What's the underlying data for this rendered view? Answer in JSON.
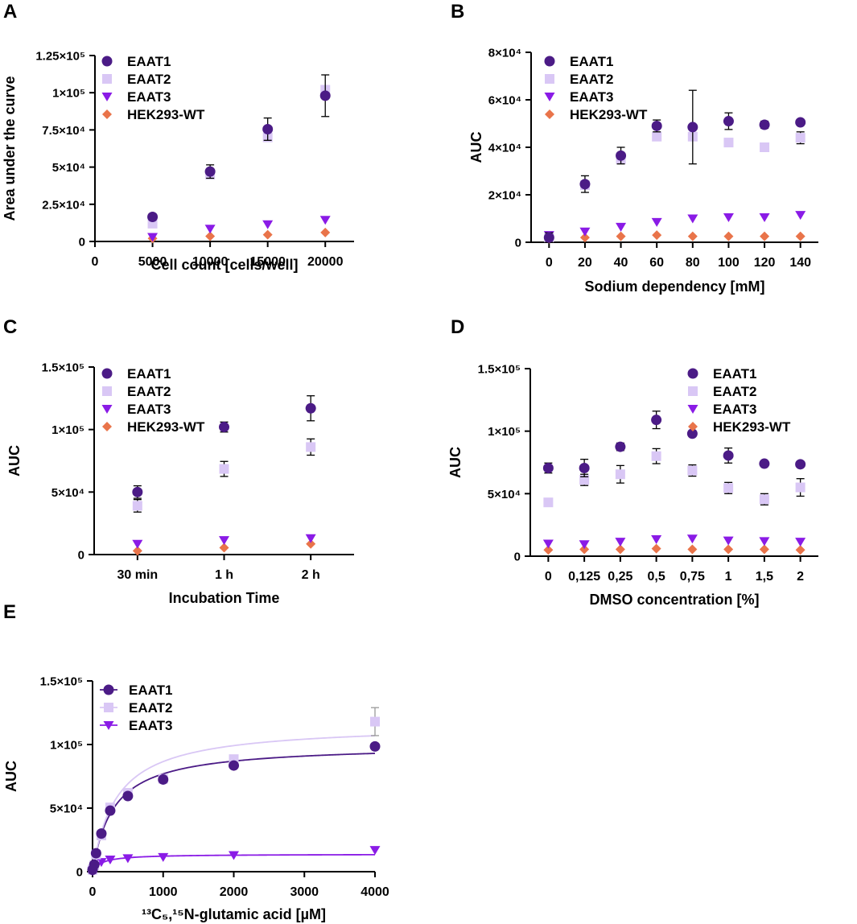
{
  "figure": {
    "colors": {
      "EAAT1": "#4b1b86",
      "EAAT2": "#d9c7f5",
      "EAAT3": "#8a1be6",
      "HEK293-WT": "#e9744a"
    }
  },
  "chart_data": [
    {
      "panel_label": "A",
      "type": "scatter",
      "xlabel": "Cell count [cells/well]",
      "ylabel": "Area under the curve",
      "xlim": [
        0,
        22500
      ],
      "ylim": [
        0,
        125000
      ],
      "xticks": [
        0,
        5000,
        10000,
        15000,
        20000
      ],
      "xtick_labels": [
        "0",
        "5000",
        "10000",
        "15000",
        "20000"
      ],
      "yticks": [
        0,
        25000,
        50000,
        75000,
        100000,
        125000
      ],
      "ytick_labels": [
        "0",
        "2.5×10⁴",
        "5×10⁴",
        "7.5×10⁴",
        "1×10⁵",
        "1.25×10⁵"
      ],
      "legend_position": "top-left",
      "x": [
        5000,
        10000,
        15000,
        20000
      ],
      "series": [
        {
          "name": "EAAT1",
          "marker": "circle",
          "values": [
            16500,
            47000,
            75500,
            98000
          ],
          "errors": [
            2000,
            4500,
            7500,
            14000
          ]
        },
        {
          "name": "EAAT2",
          "marker": "square",
          "values": [
            12000,
            45000,
            70000,
            102000
          ],
          "errors": [
            0,
            0,
            0,
            0
          ]
        },
        {
          "name": "EAAT3",
          "marker": "triangle",
          "values": [
            3000,
            8500,
            11500,
            14500
          ],
          "errors": [
            0,
            0,
            0,
            0
          ]
        },
        {
          "name": "HEK293-WT",
          "marker": "diamond",
          "values": [
            2000,
            3500,
            4500,
            6000
          ],
          "errors": [
            0,
            0,
            0,
            0
          ]
        }
      ]
    },
    {
      "panel_label": "B",
      "type": "scatter",
      "xlabel": "Sodium dependency [mM]",
      "ylabel": "AUC",
      "xlim": [
        -10,
        150
      ],
      "ylim": [
        0,
        80000
      ],
      "xticks": [
        0,
        20,
        40,
        60,
        80,
        100,
        120,
        140
      ],
      "xtick_labels": [
        "0",
        "20",
        "40",
        "60",
        "80",
        "100",
        "120",
        "140"
      ],
      "yticks": [
        0,
        20000,
        40000,
        60000,
        80000
      ],
      "ytick_labels": [
        "0",
        "2×10⁴",
        "4×10⁴",
        "6×10⁴",
        "8×10⁴"
      ],
      "legend_position": "top-left",
      "x": [
        0,
        20,
        40,
        60,
        80,
        100,
        120,
        140
      ],
      "series": [
        {
          "name": "EAAT1",
          "marker": "circle",
          "values": [
            2000,
            24500,
            36500,
            49000,
            48500,
            51000,
            49500,
            50500
          ],
          "errors": [
            2000,
            3500,
            3500,
            2500,
            15500,
            3500,
            1500,
            0
          ]
        },
        {
          "name": "EAAT2",
          "marker": "square",
          "values": [
            2000,
            24000,
            35000,
            44500,
            44500,
            42000,
            40000,
            44000
          ],
          "errors": [
            0,
            0,
            0,
            0,
            0,
            0,
            0,
            2500
          ]
        },
        {
          "name": "EAAT3",
          "marker": "triangle",
          "values": [
            3000,
            4500,
            6500,
            8500,
            10000,
            10500,
            10500,
            11500
          ],
          "errors": [
            0,
            0,
            0,
            0,
            0,
            0,
            0,
            0
          ]
        },
        {
          "name": "HEK293-WT",
          "marker": "diamond",
          "values": [
            1500,
            2000,
            2500,
            3000,
            2500,
            2500,
            2500,
            2500
          ],
          "errors": [
            0,
            0,
            0,
            0,
            0,
            0,
            0,
            0
          ]
        }
      ]
    },
    {
      "panel_label": "C",
      "type": "scatter",
      "xlabel": "Incubation  Time",
      "ylabel": "AUC",
      "xlim": [
        -0.5,
        2.5
      ],
      "ylim": [
        0,
        150000
      ],
      "xticks": [
        0,
        1,
        2
      ],
      "xtick_labels": [
        "30 min",
        "1 h",
        "2 h"
      ],
      "yticks": [
        0,
        50000,
        100000,
        150000
      ],
      "ytick_labels": [
        "0",
        "5×10⁴",
        "1×10⁵",
        "1.5×10⁵"
      ],
      "legend_position": "top-left",
      "x": [
        0,
        1,
        2
      ],
      "series": [
        {
          "name": "EAAT1",
          "marker": "circle",
          "values": [
            50000,
            102000,
            117000
          ],
          "errors": [
            5000,
            4000,
            10000
          ]
        },
        {
          "name": "EAAT2",
          "marker": "square",
          "values": [
            39000,
            68500,
            86000
          ],
          "errors": [
            5000,
            6000,
            6500
          ]
        },
        {
          "name": "EAAT3",
          "marker": "triangle",
          "values": [
            8500,
            11500,
            13000
          ],
          "errors": [
            0,
            0,
            0
          ]
        },
        {
          "name": "HEK293-WT",
          "marker": "diamond",
          "values": [
            3000,
            5500,
            8500
          ],
          "errors": [
            0,
            0,
            0
          ]
        }
      ]
    },
    {
      "panel_label": "D",
      "type": "scatter",
      "xlabel": "DMSO concentration [%]",
      "ylabel": "AUC",
      "xlim": [
        -0.5,
        7.5
      ],
      "ylim": [
        0,
        150000
      ],
      "xticks": [
        0,
        1,
        2,
        3,
        4,
        5,
        6,
        7
      ],
      "xtick_labels": [
        "0",
        "0,125",
        "0,25",
        "0,5",
        "0,75",
        "1",
        "1,5",
        "2"
      ],
      "yticks": [
        0,
        50000,
        100000,
        150000
      ],
      "ytick_labels": [
        "0",
        "5×10⁴",
        "1×10⁵",
        "1.5×10⁵"
      ],
      "legend_position": "top-right",
      "x": [
        0,
        1,
        2,
        3,
        4,
        5,
        6,
        7
      ],
      "series": [
        {
          "name": "EAAT1",
          "marker": "circle",
          "values": [
            70500,
            70500,
            87500,
            109000,
            98000,
            80500,
            74000,
            73500
          ],
          "errors": [
            4000,
            7000,
            3000,
            7000,
            0,
            6000,
            0,
            0
          ]
        },
        {
          "name": "EAAT2",
          "marker": "square",
          "values": [
            43000,
            61000,
            65500,
            80000,
            68500,
            54500,
            45500,
            55000
          ],
          "errors": [
            0,
            4500,
            7000,
            6000,
            4500,
            4500,
            4500,
            7000
          ]
        },
        {
          "name": "EAAT3",
          "marker": "triangle",
          "values": [
            10000,
            9500,
            11500,
            13500,
            14000,
            12500,
            12000,
            11500
          ],
          "errors": [
            0,
            0,
            0,
            0,
            0,
            0,
            0,
            0
          ]
        },
        {
          "name": "HEK293-WT",
          "marker": "diamond",
          "values": [
            5000,
            5500,
            5500,
            6000,
            5500,
            5500,
            5500,
            5000
          ],
          "errors": [
            0,
            0,
            0,
            0,
            0,
            0,
            0,
            0
          ]
        }
      ]
    },
    {
      "panel_label": "E",
      "type": "scatter",
      "xlabel": "¹³C₅,¹⁵N-glutamic acid [µM]",
      "ylabel": "AUC",
      "xlim": [
        0,
        4000
      ],
      "ylim": [
        0,
        150000
      ],
      "xticks": [
        0,
        1000,
        2000,
        3000,
        4000
      ],
      "xtick_labels": [
        "0",
        "1000",
        "2000",
        "3000",
        "4000"
      ],
      "yticks": [
        0,
        50000,
        100000,
        150000
      ],
      "ytick_labels": [
        "0",
        "5×10⁴",
        "1×10⁵",
        "1.5×10⁵"
      ],
      "legend_position": "top-left",
      "x": [
        0,
        25,
        50,
        125,
        250,
        500,
        1000,
        2000,
        4000
      ],
      "series": [
        {
          "name": "EAAT1",
          "marker": "circle",
          "values": [
            1500,
            5500,
            14500,
            30000,
            48000,
            59500,
            72500,
            83500,
            98500
          ],
          "errors": [
            0,
            0,
            0,
            0,
            0,
            0,
            0,
            0,
            0
          ],
          "fit": {
            "vmax": 100000,
            "km": 300
          }
        },
        {
          "name": "EAAT2",
          "marker": "square",
          "values": [
            1500,
            5000,
            13500,
            28500,
            50500,
            62000,
            73000,
            88500,
            118000
          ],
          "errors": [
            0,
            0,
            0,
            0,
            0,
            0,
            0,
            0,
            11000
          ],
          "fit": {
            "vmax": 116000,
            "km": 340
          }
        },
        {
          "name": "EAAT3",
          "marker": "triangle",
          "values": [
            500,
            3000,
            5000,
            7500,
            9500,
            10500,
            11500,
            13000,
            17000
          ],
          "errors": [
            0,
            0,
            0,
            0,
            0,
            0,
            0,
            0,
            0
          ],
          "fit": {
            "vmax": 13800,
            "km": 130
          }
        }
      ]
    }
  ]
}
